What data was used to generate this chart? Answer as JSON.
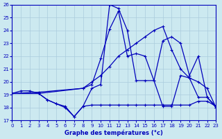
{
  "xlabel": "Graphe des températures (°c)",
  "xlim": [
    0,
    23
  ],
  "ylim": [
    17,
    26
  ],
  "xticks": [
    0,
    1,
    2,
    3,
    4,
    5,
    6,
    7,
    8,
    9,
    10,
    11,
    12,
    13,
    14,
    15,
    16,
    17,
    18,
    19,
    20,
    21,
    22,
    23
  ],
  "yticks": [
    17,
    18,
    19,
    20,
    21,
    22,
    23,
    24,
    25,
    26
  ],
  "bg_color": "#cce9f0",
  "line_color": "#0000bb",
  "grid_color": "#aaccdd",
  "line1_x": [
    0,
    1,
    2,
    3,
    4,
    5,
    6,
    7,
    8,
    9,
    10,
    11,
    12,
    13,
    14,
    15,
    16,
    17,
    18,
    19,
    20,
    21,
    22,
    23
  ],
  "line1_y": [
    19.1,
    19.3,
    19.3,
    19.1,
    18.6,
    18.3,
    18.0,
    17.3,
    18.1,
    19.5,
    19.8,
    26.0,
    25.7,
    24.0,
    20.1,
    20.1,
    20.1,
    18.1,
    18.1,
    20.5,
    20.3,
    18.8,
    18.8,
    18.1
  ],
  "line2_x": [
    0,
    3,
    8,
    9,
    10,
    11,
    12,
    13,
    14,
    15,
    16,
    17,
    18,
    19,
    20,
    21,
    22,
    23
  ],
  "line2_y": [
    19.1,
    19.1,
    19.5,
    19.8,
    21.8,
    24.1,
    25.5,
    22.0,
    22.2,
    22.0,
    20.1,
    23.2,
    23.5,
    23.0,
    20.5,
    22.0,
    18.8,
    18.0
  ],
  "line3_x": [
    0,
    3,
    8,
    9,
    10,
    11,
    12,
    13,
    14,
    15,
    16,
    17,
    18,
    19,
    20,
    21,
    22,
    23
  ],
  "line3_y": [
    19.1,
    19.2,
    19.5,
    20.0,
    20.5,
    21.2,
    22.0,
    22.5,
    23.0,
    23.5,
    24.0,
    24.3,
    22.5,
    21.0,
    20.3,
    20.0,
    19.5,
    18.0
  ],
  "line4_x": [
    0,
    3,
    4,
    5,
    6,
    7,
    8,
    9,
    10,
    11,
    12,
    13,
    14,
    15,
    16,
    17,
    18,
    19,
    20,
    21,
    22,
    23
  ],
  "line4_y": [
    19.1,
    19.1,
    18.6,
    18.3,
    18.1,
    17.3,
    18.1,
    18.2,
    18.2,
    18.2,
    18.2,
    18.2,
    18.2,
    18.2,
    18.2,
    18.2,
    18.2,
    18.2,
    18.2,
    18.5,
    18.5,
    18.1
  ]
}
